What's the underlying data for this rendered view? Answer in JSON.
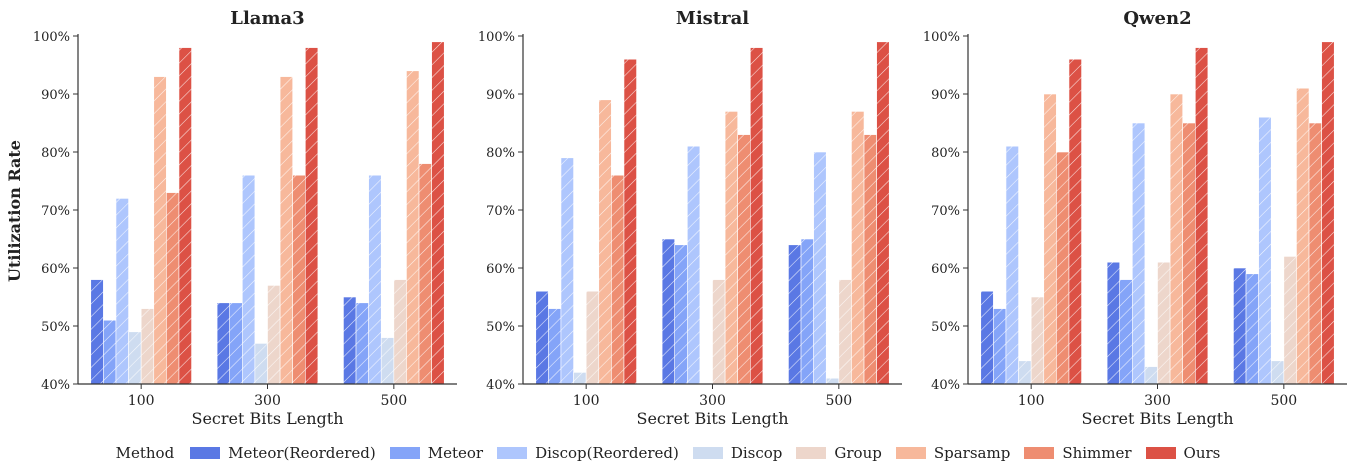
{
  "chart_data": {
    "type": "bar",
    "ylabel": "Utilization Rate",
    "ylim": [
      40,
      100
    ],
    "yticks": [
      "40%",
      "50%",
      "60%",
      "70%",
      "80%",
      "90%",
      "100%"
    ],
    "legend": {
      "title": "Method",
      "placement": "bottom-center",
      "entries": [
        "Meteor(Reordered)",
        "Meteor",
        "Discop(Reordered)",
        "Discop",
        "Group",
        "Sparsamp",
        "Shimmer",
        "Ours"
      ],
      "colors": [
        "#5A78E4",
        "#84A4F8",
        "#AEC6FD",
        "#CEDCF0",
        "#EDD6CB",
        "#F7B89B",
        "#EE8D71",
        "#DC5145"
      ]
    },
    "panels": [
      {
        "title": "Llama3",
        "xlabel": "Secret Bits Length",
        "categories": [
          "100",
          "300",
          "500"
        ],
        "series": [
          {
            "name": "Meteor(Reordered)",
            "values": [
              58,
              54,
              55
            ]
          },
          {
            "name": "Meteor",
            "values": [
              51,
              54,
              54
            ]
          },
          {
            "name": "Discop(Reordered)",
            "values": [
              72,
              76,
              76
            ]
          },
          {
            "name": "Discop",
            "values": [
              49,
              47,
              48
            ]
          },
          {
            "name": "Group",
            "values": [
              53,
              57,
              58
            ]
          },
          {
            "name": "Sparsamp",
            "values": [
              93,
              93,
              94
            ]
          },
          {
            "name": "Shimmer",
            "values": [
              73,
              76,
              78
            ]
          },
          {
            "name": "Ours",
            "values": [
              98,
              98,
              99
            ]
          }
        ]
      },
      {
        "title": "Mistral",
        "xlabel": "Secret Bits Length",
        "categories": [
          "100",
          "300",
          "500"
        ],
        "series": [
          {
            "name": "Meteor(Reordered)",
            "values": [
              56,
              65,
              64
            ]
          },
          {
            "name": "Meteor",
            "values": [
              53,
              64,
              65
            ]
          },
          {
            "name": "Discop(Reordered)",
            "values": [
              79,
              81,
              80
            ]
          },
          {
            "name": "Discop",
            "values": [
              42,
              40,
              41
            ]
          },
          {
            "name": "Group",
            "values": [
              56,
              58,
              58
            ]
          },
          {
            "name": "Sparsamp",
            "values": [
              89,
              87,
              87
            ]
          },
          {
            "name": "Shimmer",
            "values": [
              76,
              83,
              83
            ]
          },
          {
            "name": "Ours",
            "values": [
              96,
              98,
              99
            ]
          }
        ]
      },
      {
        "title": "Qwen2",
        "xlabel": "Secret Bits Length",
        "categories": [
          "100",
          "300",
          "500"
        ],
        "series": [
          {
            "name": "Meteor(Reordered)",
            "values": [
              56,
              61,
              60
            ]
          },
          {
            "name": "Meteor",
            "values": [
              53,
              58,
              59
            ]
          },
          {
            "name": "Discop(Reordered)",
            "values": [
              81,
              85,
              86
            ]
          },
          {
            "name": "Discop",
            "values": [
              44,
              43,
              44
            ]
          },
          {
            "name": "Group",
            "values": [
              55,
              61,
              62
            ]
          },
          {
            "name": "Sparsamp",
            "values": [
              90,
              90,
              91
            ]
          },
          {
            "name": "Shimmer",
            "values": [
              80,
              85,
              85
            ]
          },
          {
            "name": "Ours",
            "values": [
              96,
              98,
              99
            ]
          }
        ]
      }
    ]
  }
}
